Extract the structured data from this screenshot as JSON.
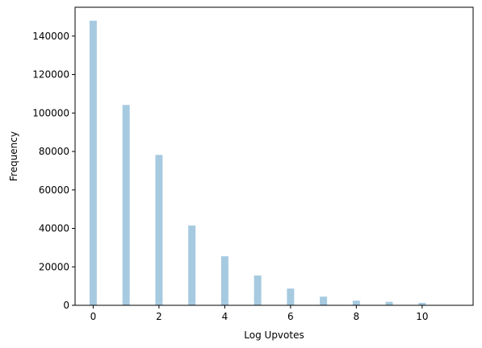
{
  "chart_data": {
    "type": "bar",
    "title": "",
    "xlabel": "Log Upvotes",
    "ylabel": "Frequency",
    "xlim": [
      -0.55,
      11.55
    ],
    "ylim": [
      0,
      155000
    ],
    "bar_color": "#a6cae0",
    "grid": false,
    "bar_width": 0.22,
    "x_ticks": [
      0,
      2,
      4,
      6,
      8,
      10
    ],
    "y_ticks": [
      0,
      20000,
      40000,
      60000,
      80000,
      100000,
      120000,
      140000
    ],
    "bars": [
      {
        "x": 0,
        "value": 148000
      },
      {
        "x": 1,
        "value": 104200
      },
      {
        "x": 2,
        "value": 78200
      },
      {
        "x": 3,
        "value": 41500
      },
      {
        "x": 4,
        "value": 25500
      },
      {
        "x": 5,
        "value": 15500
      },
      {
        "x": 6,
        "value": 8700
      },
      {
        "x": 7,
        "value": 4500
      },
      {
        "x": 8,
        "value": 2400
      },
      {
        "x": 9,
        "value": 1800
      },
      {
        "x": 10,
        "value": 1300
      }
    ]
  }
}
